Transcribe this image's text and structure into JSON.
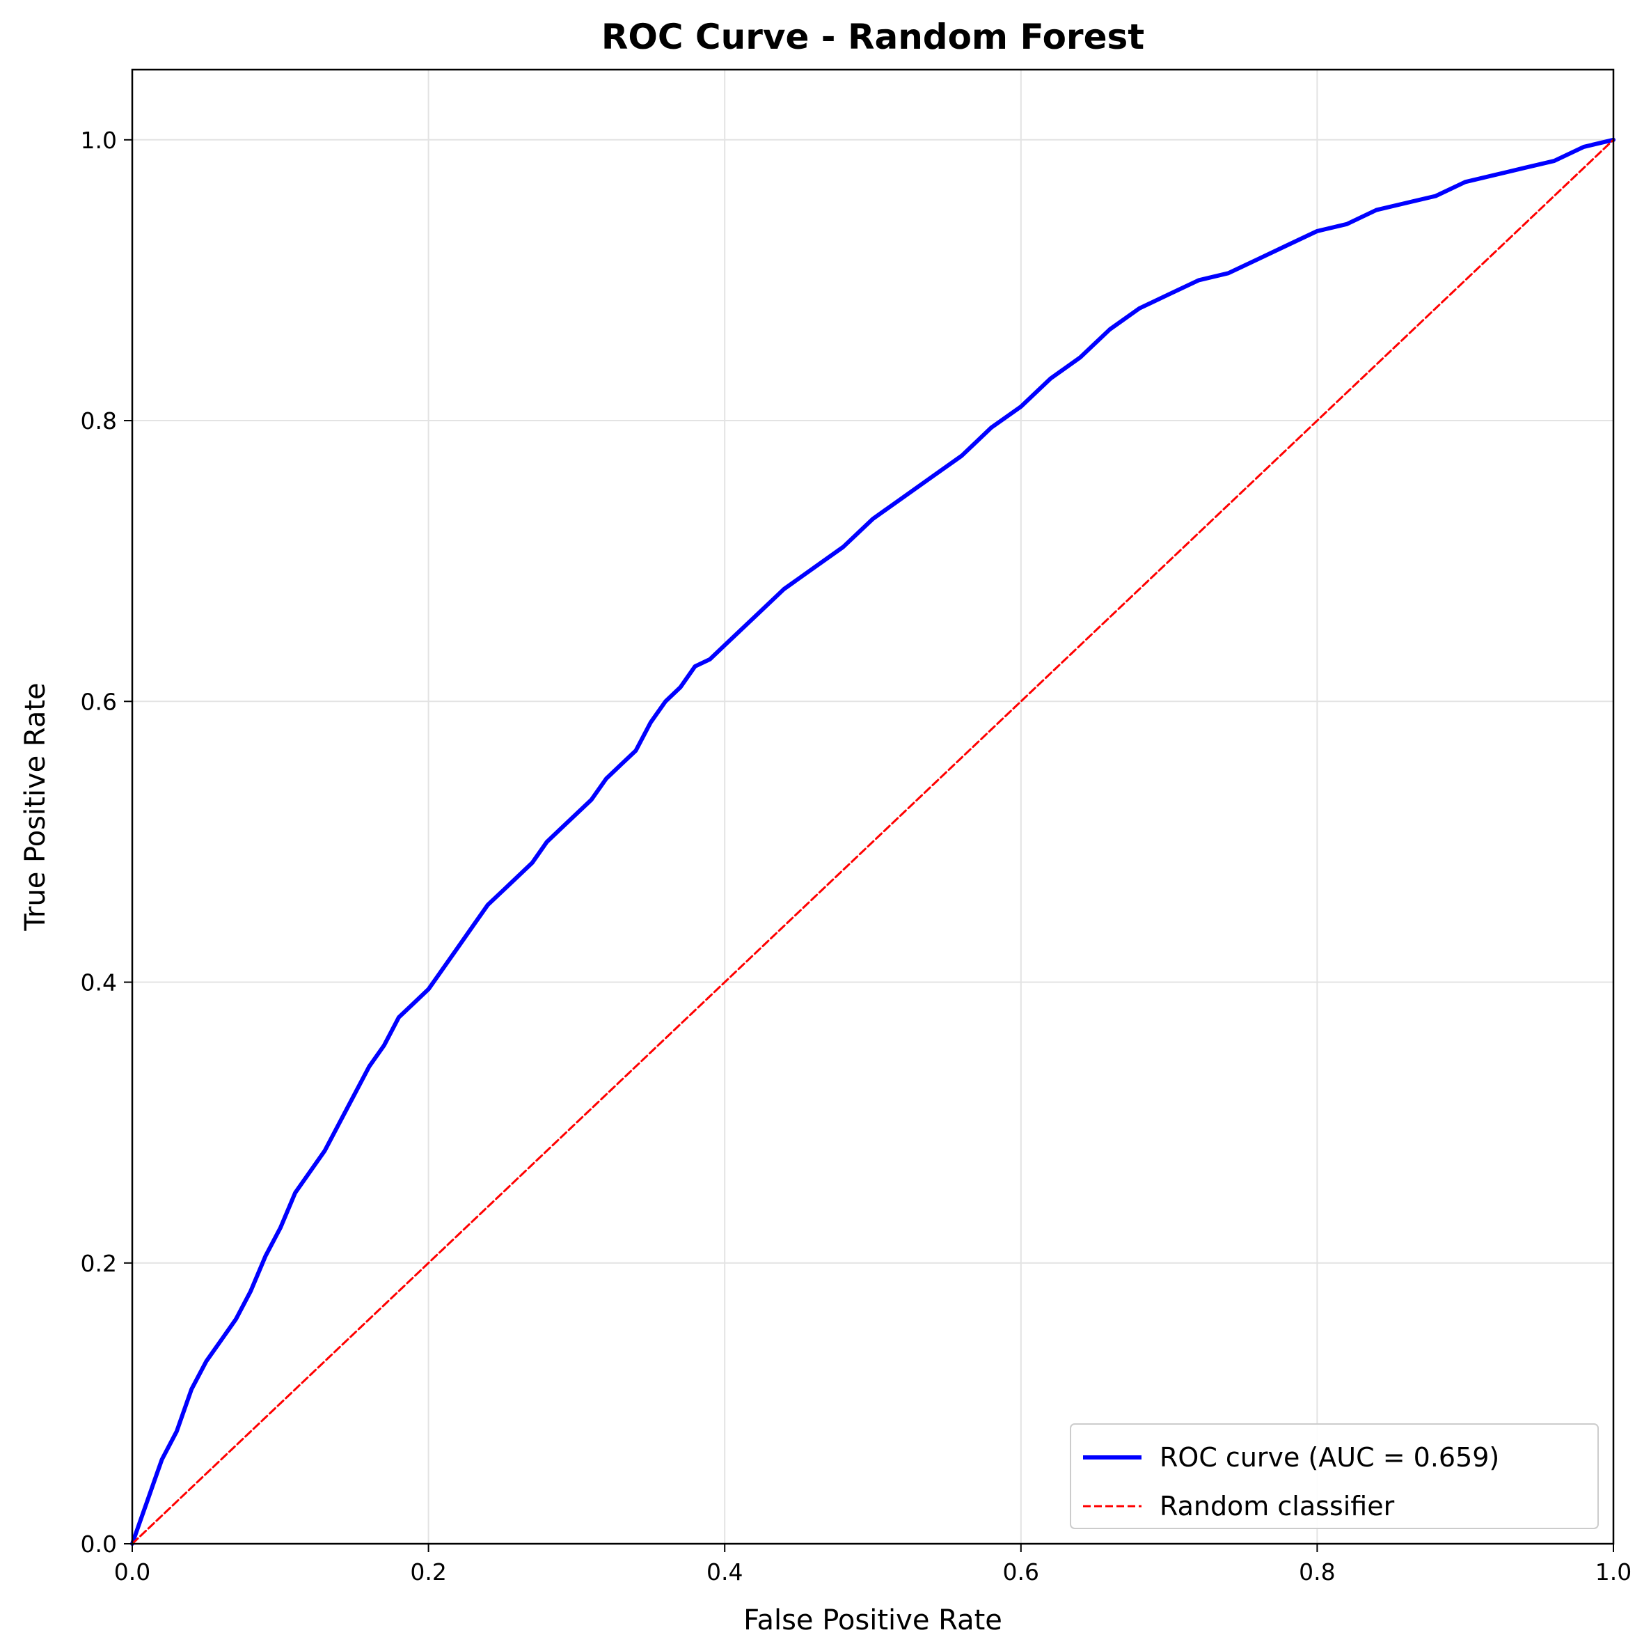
{
  "chart_data": {
    "type": "line",
    "title": "ROC Curve - Random Forest",
    "xlabel": "False Positive Rate",
    "ylabel": "True Positive Rate",
    "xlim": [
      0.0,
      1.0
    ],
    "ylim": [
      0.0,
      1.05
    ],
    "xticks": [
      "0.0",
      "0.2",
      "0.4",
      "0.6",
      "0.8",
      "1.0"
    ],
    "yticks": [
      "0.0",
      "0.2",
      "0.4",
      "0.6",
      "0.8",
      "1.0"
    ],
    "grid": true,
    "legend_position": "lower-right",
    "series": [
      {
        "name": "ROC curve (AUC = 0.659)",
        "color": "#0000ff",
        "style": "solid",
        "x": [
          0.0,
          0.005,
          0.01,
          0.015,
          0.02,
          0.03,
          0.04,
          0.05,
          0.06,
          0.07,
          0.08,
          0.09,
          0.1,
          0.11,
          0.12,
          0.13,
          0.14,
          0.15,
          0.16,
          0.17,
          0.18,
          0.19,
          0.2,
          0.21,
          0.22,
          0.23,
          0.24,
          0.25,
          0.26,
          0.27,
          0.28,
          0.29,
          0.3,
          0.31,
          0.32,
          0.33,
          0.34,
          0.35,
          0.36,
          0.37,
          0.38,
          0.39,
          0.4,
          0.42,
          0.44,
          0.46,
          0.48,
          0.5,
          0.52,
          0.54,
          0.56,
          0.58,
          0.6,
          0.62,
          0.64,
          0.66,
          0.68,
          0.7,
          0.72,
          0.74,
          0.76,
          0.78,
          0.8,
          0.82,
          0.84,
          0.86,
          0.88,
          0.9,
          0.92,
          0.94,
          0.96,
          0.98,
          1.0
        ],
        "y": [
          0.0,
          0.015,
          0.03,
          0.045,
          0.06,
          0.08,
          0.11,
          0.13,
          0.145,
          0.16,
          0.18,
          0.205,
          0.225,
          0.25,
          0.265,
          0.28,
          0.3,
          0.32,
          0.34,
          0.355,
          0.375,
          0.385,
          0.395,
          0.41,
          0.425,
          0.44,
          0.455,
          0.465,
          0.475,
          0.485,
          0.5,
          0.51,
          0.52,
          0.53,
          0.545,
          0.555,
          0.565,
          0.585,
          0.6,
          0.61,
          0.625,
          0.63,
          0.64,
          0.66,
          0.68,
          0.695,
          0.71,
          0.73,
          0.745,
          0.76,
          0.775,
          0.795,
          0.81,
          0.83,
          0.845,
          0.865,
          0.88,
          0.89,
          0.9,
          0.905,
          0.915,
          0.925,
          0.935,
          0.94,
          0.95,
          0.955,
          0.96,
          0.97,
          0.975,
          0.98,
          0.985,
          0.995,
          1.0
        ]
      },
      {
        "name": "Random classifier",
        "color": "#ff0000",
        "style": "dashed",
        "x": [
          0.0,
          1.0
        ],
        "y": [
          0.0,
          1.0
        ]
      }
    ]
  }
}
